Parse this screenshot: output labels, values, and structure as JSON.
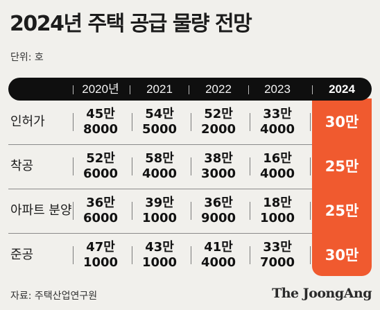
{
  "title": "2024년 주택 공급 물량 전망",
  "unit_label": "단위: 호",
  "source": "자료: 주택산업연구원",
  "logo": "The JoongAng",
  "colors": {
    "background": "#f1f0ec",
    "header": "#0f0f0f",
    "highlight": "#f05a2f"
  },
  "chart_data": {
    "type": "table",
    "columns": [
      "2020년",
      "2021",
      "2022",
      "2023",
      "2024"
    ],
    "highlight_column": "2024",
    "rows": [
      {
        "label": "인허가",
        "values": [
          {
            "line1": "45만",
            "line2": "8000"
          },
          {
            "line1": "54만",
            "line2": "5000"
          },
          {
            "line1": "52만",
            "line2": "2000"
          },
          {
            "line1": "33만",
            "line2": "4000"
          }
        ],
        "forecast": "30만"
      },
      {
        "label": "착공",
        "values": [
          {
            "line1": "52만",
            "line2": "6000"
          },
          {
            "line1": "58만",
            "line2": "4000"
          },
          {
            "line1": "38만",
            "line2": "3000"
          },
          {
            "line1": "16만",
            "line2": "4000"
          }
        ],
        "forecast": "25만"
      },
      {
        "label": "아파트 분양",
        "values": [
          {
            "line1": "36만",
            "line2": "6000"
          },
          {
            "line1": "39만",
            "line2": "1000"
          },
          {
            "line1": "36만",
            "line2": "9000"
          },
          {
            "line1": "18만",
            "line2": "1000"
          }
        ],
        "forecast": "25만"
      },
      {
        "label": "준공",
        "values": [
          {
            "line1": "47만",
            "line2": "1000"
          },
          {
            "line1": "43만",
            "line2": "1000"
          },
          {
            "line1": "41만",
            "line2": "4000"
          },
          {
            "line1": "33만",
            "line2": "7000"
          }
        ],
        "forecast": "30만"
      }
    ]
  }
}
